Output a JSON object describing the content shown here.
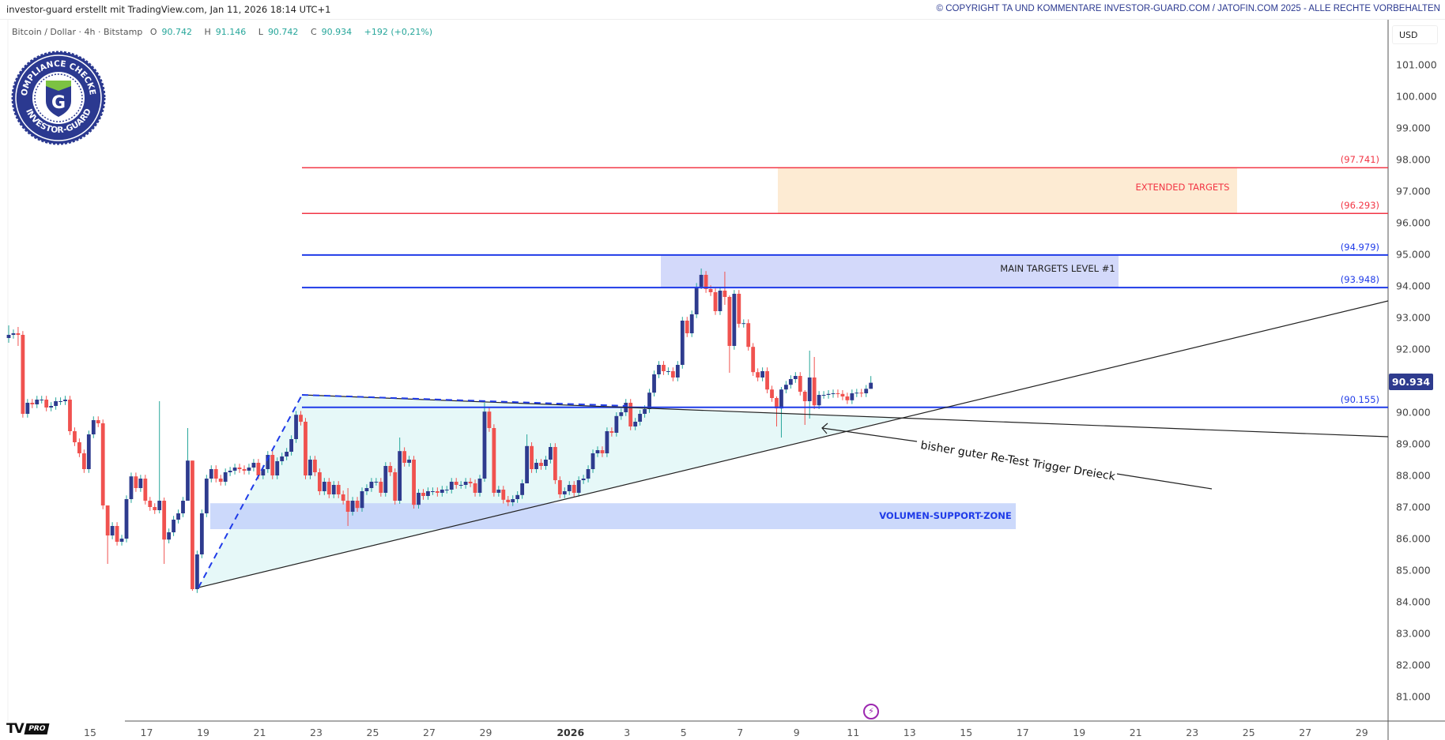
{
  "header": {
    "creator": "investor-guard erstellt mit TradingView.com, Jan 11, 2026 18:14 UTC+1",
    "copyright": "© COPYRIGHT TA UND KOMMENTARE INVESTOR-GUARD.COM / JATOFIN.COM 2025 - ALLE RECHTE VORBEHALTEN"
  },
  "legend": {
    "symbol": "Bitcoin / Dollar · 4h · Bitstamp",
    "open_label": "O",
    "open": "90.742",
    "high_label": "H",
    "high": "91.146",
    "low_label": "L",
    "low": "90.742",
    "close_label": "C",
    "close": "90.934",
    "change": "+192 (+0,21%)"
  },
  "badge": {
    "top_text": "COMPLIANCE CHECKED",
    "bottom_text": "INVESTOR-GUARD",
    "letter": "G"
  },
  "currency": "USD",
  "current_price": "90.934",
  "colors": {
    "up_body": "#2e3b8e",
    "up_wick": "#26a69a",
    "down": "#f0524f",
    "extended": "#f23645",
    "main": "#1f3be8",
    "ext_zone": "#fdebd3",
    "main_zone": "#d3d9fa",
    "support_zone": "#c3d2fa",
    "triangle": "#e3f7f7"
  },
  "annotations": {
    "extended_targets": "EXTENDED TARGETS",
    "main_targets": "MAIN TARGETS LEVEL #1",
    "support_zone": "VOLUMEN-SUPPORT-ZONE",
    "comment": "bisher guter Re-Test Trigger Dreieck"
  },
  "footer": {
    "logo": "TV",
    "pro": "PRO",
    "lightning_icon": "lightning-icon"
  },
  "chart_data": {
    "type": "candlestick",
    "title": "Bitcoin / Dollar · 4h · Bitstamp",
    "ylim": [
      80.2,
      101.8
    ],
    "y_ticks": [
      "101.000",
      "100.000",
      "99.000",
      "98.000",
      "97.000",
      "96.000",
      "95.000",
      "94.000",
      "93.000",
      "92.000",
      "91.000",
      "90.000",
      "89.000",
      "88.000",
      "87.000",
      "86.000",
      "85.000",
      "84.000",
      "83.000",
      "82.000",
      "81.000"
    ],
    "x_ticks": [
      {
        "label": "15",
        "day": 0
      },
      {
        "label": "17",
        "day": 2
      },
      {
        "label": "19",
        "day": 4
      },
      {
        "label": "21",
        "day": 6
      },
      {
        "label": "23",
        "day": 8
      },
      {
        "label": "25",
        "day": 10
      },
      {
        "label": "27",
        "day": 12
      },
      {
        "label": "29",
        "day": 14
      },
      {
        "label": "2026",
        "day": 17,
        "bold": true
      },
      {
        "label": "3",
        "day": 19
      },
      {
        "label": "5",
        "day": 21
      },
      {
        "label": "7",
        "day": 23
      },
      {
        "label": "9",
        "day": 25
      },
      {
        "label": "11",
        "day": 27
      },
      {
        "label": "13",
        "day": 29
      },
      {
        "label": "15",
        "day": 31
      },
      {
        "label": "17",
        "day": 33
      },
      {
        "label": "19",
        "day": 35
      },
      {
        "label": "21",
        "day": 37
      },
      {
        "label": "23",
        "day": 39
      },
      {
        "label": "25",
        "day": 41
      },
      {
        "label": "27",
        "day": 43
      },
      {
        "label": "29",
        "day": 45
      }
    ],
    "first_open": 92.35,
    "closes": [
      92.45,
      92.5,
      92.45,
      89.95,
      90.3,
      90.25,
      90.4,
      90.4,
      90.15,
      90.2,
      90.35,
      90.35,
      90.4,
      89.4,
      89.05,
      88.7,
      88.2,
      89.3,
      89.75,
      89.65,
      87.05,
      86.1,
      86.4,
      85.9,
      86.0,
      87.25,
      87.97,
      87.6,
      87.9,
      87.2,
      87.0,
      86.9,
      87.2,
      85.97,
      86.2,
      86.6,
      86.8,
      87.2,
      88.47,
      84.4,
      85.5,
      86.8,
      87.9,
      88.2,
      87.9,
      87.8,
      88.1,
      88.15,
      88.25,
      88.2,
      88.15,
      88.25,
      88.4,
      88.0,
      88.2,
      88.65,
      88.0,
      88.45,
      88.6,
      88.75,
      89.15,
      89.92,
      89.7,
      88.0,
      88.5,
      88.1,
      87.5,
      87.8,
      87.4,
      87.7,
      87.4,
      87.2,
      86.85,
      87.2,
      86.97,
      87.5,
      87.6,
      87.8,
      87.8,
      87.45,
      88.3,
      88.1,
      87.2,
      88.77,
      88.4,
      88.5,
      87.07,
      87.45,
      87.35,
      87.5,
      87.5,
      87.45,
      87.55,
      87.55,
      87.8,
      87.7,
      87.7,
      87.8,
      87.75,
      87.45,
      87.9,
      90.02,
      89.5,
      87.45,
      87.55,
      87.23,
      87.15,
      87.25,
      87.38,
      87.75,
      88.93,
      88.2,
      88.4,
      88.3,
      88.5,
      88.9,
      87.85,
      87.4,
      87.5,
      87.7,
      87.45,
      87.85,
      87.9,
      88.2,
      88.7,
      88.8,
      88.7,
      89.4,
      89.35,
      89.88,
      90.0,
      90.3,
      89.55,
      89.7,
      89.95,
      90.1,
      90.62,
      91.2,
      91.5,
      91.3,
      91.3,
      91.1,
      91.5,
      92.9,
      92.5,
      93.1,
      93.97,
      94.35,
      93.9,
      93.8,
      93.2,
      93.85,
      93.65,
      92.1,
      93.75,
      92.8,
      92.82,
      92.07,
      91.27,
      91.1,
      91.3,
      90.72,
      90.45,
      90.12,
      90.72,
      90.87,
      91.05,
      91.15,
      90.65,
      90.35,
      91.1,
      90.22,
      90.55,
      90.55,
      90.58,
      90.6,
      90.58,
      90.5,
      90.38,
      90.6,
      90.62,
      90.6,
      90.742,
      90.934
    ],
    "wick_overrides": {
      "0": [
        92.75,
        92.2
      ],
      "2": [
        92.7,
        92.1
      ],
      "21": [
        86.4,
        85.2
      ],
      "32": [
        90.35,
        86.8
      ],
      "33": [
        87.3,
        85.2
      ],
      "38": [
        89.5,
        88.2
      ],
      "39": [
        88.47,
        84.35
      ],
      "72": [
        87.6,
        86.4
      ],
      "83": [
        89.2,
        87.1
      ],
      "101": [
        90.3,
        87.8
      ],
      "110": [
        89.3,
        88.6
      ],
      "147": [
        94.55,
        93.9
      ],
      "152": [
        94.45,
        93.4
      ],
      "153": [
        93.7,
        91.25
      ],
      "163": [
        90.5,
        89.55
      ],
      "164": [
        90.8,
        89.2
      ],
      "169": [
        90.7,
        89.6
      ],
      "170": [
        91.95,
        89.8
      ],
      "171": [
        91.75,
        90.1
      ],
      "183": [
        91.146,
        90.742
      ]
    },
    "levels": [
      {
        "value": 97.741,
        "label": "(97.741)",
        "kind": "extended"
      },
      {
        "value": 96.293,
        "label": "(96.293)",
        "kind": "extended"
      },
      {
        "value": 94.979,
        "label": "(94.979)",
        "kind": "main"
      },
      {
        "value": 93.948,
        "label": "(93.948)",
        "kind": "main"
      },
      {
        "value": 90.155,
        "label": "(90.155)",
        "kind": "main"
      }
    ],
    "support_zone": [
      86.3,
      87.12
    ]
  }
}
